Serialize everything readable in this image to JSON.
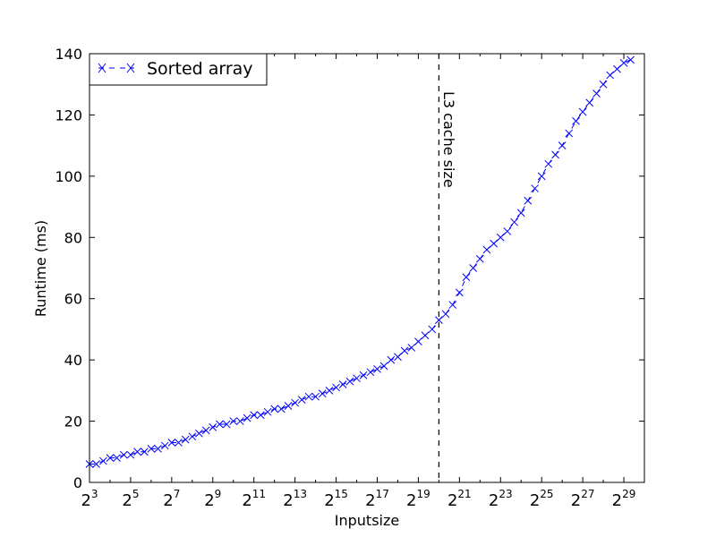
{
  "chart_data": {
    "type": "line",
    "xlabel": "Inputsize",
    "ylabel": "Runtime (ms)",
    "x_scale": "log2",
    "x_unit": "log2(input size)",
    "xlim": [
      3,
      30
    ],
    "ylim": [
      0,
      140
    ],
    "x_ticks": [
      {
        "pos": 3,
        "base": "2",
        "exp": "3"
      },
      {
        "pos": 5,
        "base": "2",
        "exp": "5"
      },
      {
        "pos": 7,
        "base": "2",
        "exp": "7"
      },
      {
        "pos": 9,
        "base": "2",
        "exp": "9"
      },
      {
        "pos": 11,
        "base": "2",
        "exp": "11"
      },
      {
        "pos": 13,
        "base": "2",
        "exp": "13"
      },
      {
        "pos": 15,
        "base": "2",
        "exp": "15"
      },
      {
        "pos": 17,
        "base": "2",
        "exp": "17"
      },
      {
        "pos": 19,
        "base": "2",
        "exp": "19"
      },
      {
        "pos": 21,
        "base": "2",
        "exp": "21"
      },
      {
        "pos": 23,
        "base": "2",
        "exp": "23"
      },
      {
        "pos": 25,
        "base": "2",
        "exp": "25"
      },
      {
        "pos": 27,
        "base": "2",
        "exp": "27"
      },
      {
        "pos": 29,
        "base": "2",
        "exp": "29"
      }
    ],
    "y_ticks": [
      0,
      20,
      40,
      60,
      80,
      100,
      120,
      140
    ],
    "legend": {
      "placement": "top-left"
    },
    "grid": false,
    "series": [
      {
        "name": "Sorted array",
        "color": "#0000ff",
        "marker": "x",
        "line_style": "dashed",
        "x": [
          3.0,
          3.33,
          3.67,
          4.0,
          4.33,
          4.67,
          5.0,
          5.33,
          5.67,
          6.0,
          6.33,
          6.67,
          7.0,
          7.33,
          7.67,
          8.0,
          8.33,
          8.67,
          9.0,
          9.33,
          9.67,
          10.0,
          10.33,
          10.67,
          11.0,
          11.33,
          11.67,
          12.0,
          12.33,
          12.67,
          13.0,
          13.33,
          13.67,
          14.0,
          14.33,
          14.67,
          15.0,
          15.33,
          15.67,
          16.0,
          16.33,
          16.67,
          17.0,
          17.33,
          17.67,
          18.0,
          18.33,
          18.67,
          19.0,
          19.33,
          19.67,
          20.0,
          20.33,
          20.67,
          21.0,
          21.33,
          21.67,
          22.0,
          22.33,
          22.67,
          23.0,
          23.33,
          23.67,
          24.0,
          24.33,
          24.67,
          25.0,
          25.33,
          25.67,
          26.0,
          26.33,
          26.67,
          27.0,
          27.33,
          27.67,
          28.0,
          28.33,
          28.67,
          29.0,
          29.33
        ],
        "values": [
          6,
          6,
          7,
          8,
          8,
          9,
          9,
          10,
          10,
          11,
          11,
          12,
          13,
          13,
          14,
          15,
          16,
          17,
          18,
          19,
          19,
          20,
          20,
          21,
          22,
          22,
          23,
          24,
          24,
          25,
          26,
          27,
          28,
          28,
          29,
          30,
          31,
          32,
          33,
          34,
          35,
          36,
          37,
          38,
          40,
          41,
          43,
          44,
          46,
          48,
          50,
          53,
          55,
          58,
          62,
          67,
          70,
          73,
          76,
          78,
          80,
          82,
          85,
          88,
          92,
          96,
          100,
          104,
          107,
          110,
          114,
          118,
          121,
          124,
          127,
          130,
          133,
          135,
          137,
          138
        ],
        "labels": [
          "Sorted array"
        ]
      }
    ],
    "annotations": [
      {
        "type": "vline",
        "x": 20,
        "style": "dashed",
        "color": "#000000",
        "text": "L3 cache size"
      }
    ]
  }
}
